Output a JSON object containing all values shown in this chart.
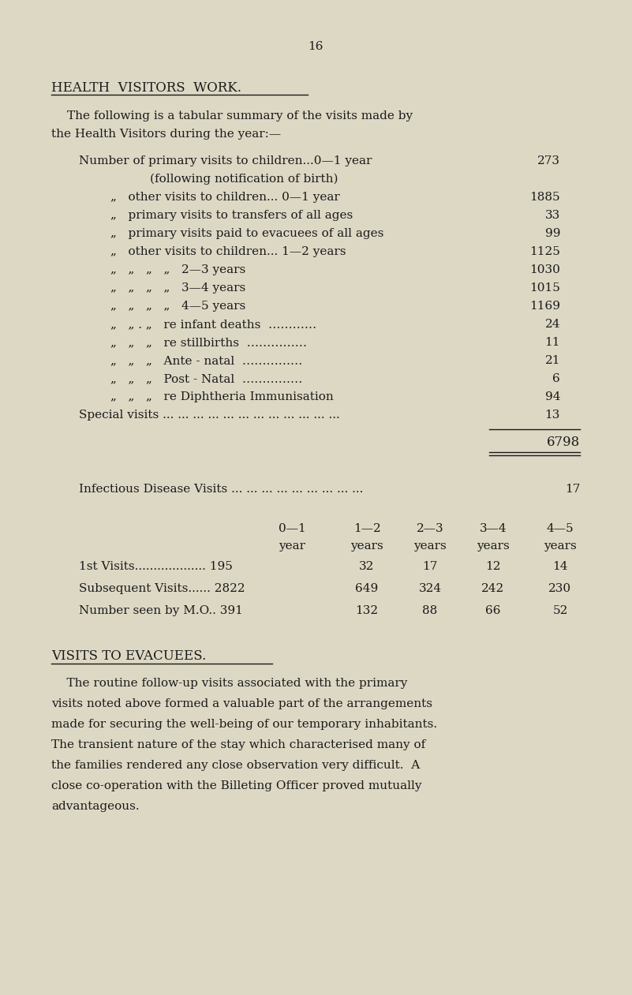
{
  "page_number": "16",
  "bg_color": "#ddd8c4",
  "text_color": "#1a1a1a",
  "heading": "HEALTH  VISITORS  WORK.",
  "intro_line1": "The following is a tabular summary of the visits made by",
  "intro_line2": "the Health Visitors during the year:—",
  "section2_heading": "VISITS TO EVACUEES.",
  "section2_para_lines": [
    "    The routine follow-up visits associated with the primary",
    "visits noted above formed a valuable part of the arrangements",
    "made for securing the well-being of our temporary inhabitants.",
    "The transient nature of the stay which characterised many of",
    "the families rendered any close observation very difficult.  A",
    "close co-operation with the Billeting Officer proved mutually",
    "advantageous."
  ],
  "total_line": "6798",
  "infectious_label": "Infectious Disease Visits ... ... ... ... ... ... ... ... ...",
  "infectious_value": "17",
  "table_col_headers": [
    "0—1",
    "1—2",
    "2—3",
    "3—4",
    "4—5"
  ],
  "table_col_subheaders": [
    "year",
    "years",
    "years",
    "years",
    "years"
  ],
  "table_data_rows": [
    {
      "label": "1st Visits................... 195",
      "vals": [
        "32",
        "17",
        "12",
        "14"
      ]
    },
    {
      "label": "Subsequent Visits...... 2822",
      "vals": [
        "649",
        "324",
        "242",
        "230"
      ]
    },
    {
      "label": "Number seen by M.O.. 391",
      "vals": [
        "132",
        "88",
        "66",
        "52"
      ]
    }
  ]
}
